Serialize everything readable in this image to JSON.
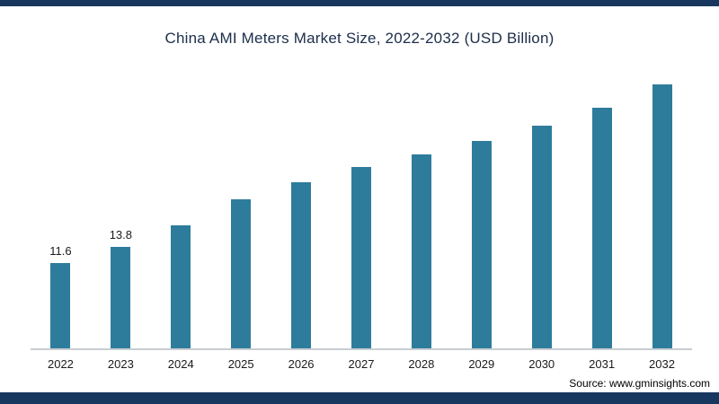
{
  "page": {
    "source": "Source: www.gminsights.com",
    "accent_navy": "#17375e",
    "bar_color": "#2e7c9c"
  },
  "chart_data": {
    "type": "bar",
    "title": "China AMI Meters Market Size, 2022-2032 (USD Billion)",
    "categories": [
      "2022",
      "2023",
      "2024",
      "2025",
      "2026",
      "2027",
      "2028",
      "2029",
      "2030",
      "2031",
      "2032"
    ],
    "values": [
      11.6,
      13.8,
      16.7,
      20.3,
      22.6,
      24.6,
      26.3,
      28.2,
      30.2,
      32.7,
      35.8
    ],
    "value_labels": [
      "11.6",
      "13.8",
      "",
      "",
      "",
      "",
      "",
      "",
      "",
      "",
      ""
    ],
    "xlabel": "",
    "ylabel": "",
    "ylim": [
      0,
      40
    ],
    "grid": false,
    "legend": "none",
    "bar_color": "#2e7c9c"
  }
}
